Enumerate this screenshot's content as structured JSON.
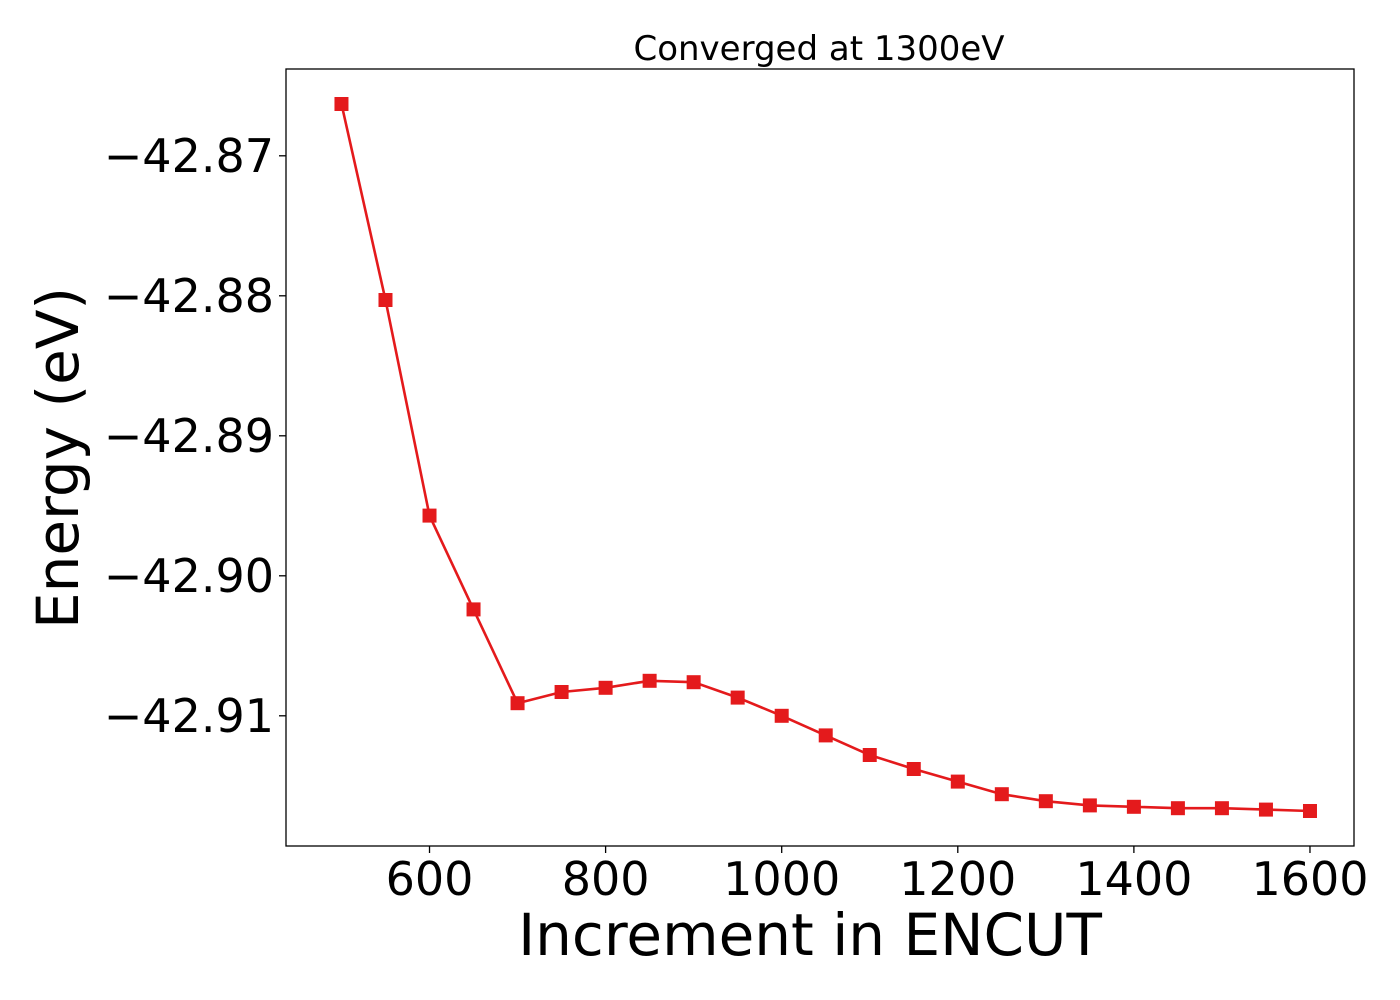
{
  "chart_data": {
    "type": "line",
    "title": "Converged at 1300eV",
    "xlabel": "Increment in ENCUT",
    "ylabel": "Energy (eV)",
    "xlim": [
      437,
      1650
    ],
    "ylim": [
      -42.9193,
      -42.8638
    ],
    "xticks": [
      600,
      800,
      1000,
      1200,
      1400,
      1600
    ],
    "xtick_labels": [
      "600",
      "800",
      "1000",
      "1200",
      "1400",
      "1600"
    ],
    "yticks": [
      -42.87,
      -42.88,
      -42.89,
      -42.9,
      -42.91
    ],
    "ytick_labels": [
      "−42.87",
      "−42.88",
      "−42.89",
      "−42.90",
      "−42.91"
    ],
    "grid": false,
    "marker": "square",
    "color": "#e41a1c",
    "series": [
      {
        "x": [
          500,
          550,
          600,
          650,
          700,
          750,
          800,
          850,
          900,
          950,
          1000,
          1050,
          1100,
          1150,
          1200,
          1250,
          1300,
          1350,
          1400,
          1450,
          1500,
          1550,
          1600
        ],
        "values": [
          -42.8663,
          -42.8803,
          -42.8957,
          -42.9024,
          -42.9091,
          -42.9083,
          -42.908,
          -42.9075,
          -42.9076,
          -42.9087,
          -42.91,
          -42.9114,
          -42.9128,
          -42.9138,
          -42.9147,
          -42.9156,
          -42.9161,
          -42.9164,
          -42.9165,
          -42.9166,
          -42.9166,
          -42.9167,
          -42.9168
        ]
      }
    ]
  }
}
